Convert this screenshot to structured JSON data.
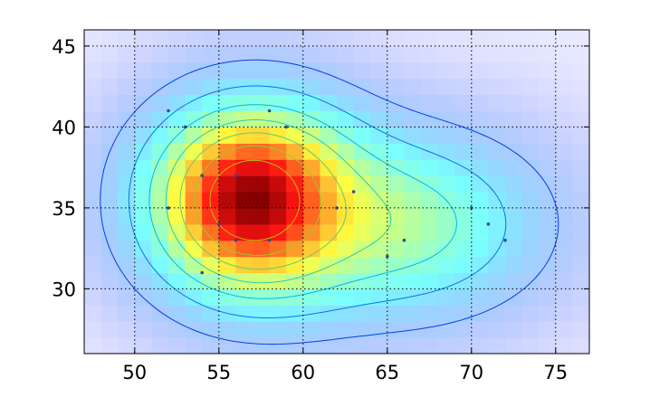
{
  "chart_data": {
    "type": "heatmap",
    "title": "",
    "xlabel": "",
    "ylabel": "",
    "xlim": [
      47,
      77
    ],
    "ylim": [
      26,
      46
    ],
    "x_ticks": [
      50,
      55,
      60,
      65,
      70,
      75
    ],
    "y_ticks": [
      30,
      35,
      40,
      45
    ],
    "x_tick_labels": [
      "50",
      "55",
      "60",
      "65",
      "70",
      "75"
    ],
    "y_tick_labels": [
      "30",
      "35",
      "40",
      "45"
    ],
    "grid": true,
    "colormap": "jet",
    "density_peak": {
      "x": 57,
      "y": 35.5
    },
    "contour_levels": [
      0.1,
      0.22,
      0.35,
      0.48,
      0.6,
      0.72,
      0.84
    ],
    "sample_points": [
      {
        "x": 52,
        "y": 41
      },
      {
        "x": 53,
        "y": 40
      },
      {
        "x": 58,
        "y": 41
      },
      {
        "x": 59,
        "y": 40
      },
      {
        "x": 54,
        "y": 37
      },
      {
        "x": 56,
        "y": 37
      },
      {
        "x": 52,
        "y": 35
      },
      {
        "x": 55,
        "y": 34
      },
      {
        "x": 56,
        "y": 33
      },
      {
        "x": 58,
        "y": 33
      },
      {
        "x": 54,
        "y": 31
      },
      {
        "x": 62,
        "y": 35
      },
      {
        "x": 63,
        "y": 36
      },
      {
        "x": 65,
        "y": 32
      },
      {
        "x": 66,
        "y": 33
      },
      {
        "x": 70,
        "y": 35
      },
      {
        "x": 71,
        "y": 34
      },
      {
        "x": 72,
        "y": 33
      }
    ]
  },
  "colors": {
    "axis": "#000000",
    "grid": "#000000",
    "point": "#3a4a8a"
  }
}
